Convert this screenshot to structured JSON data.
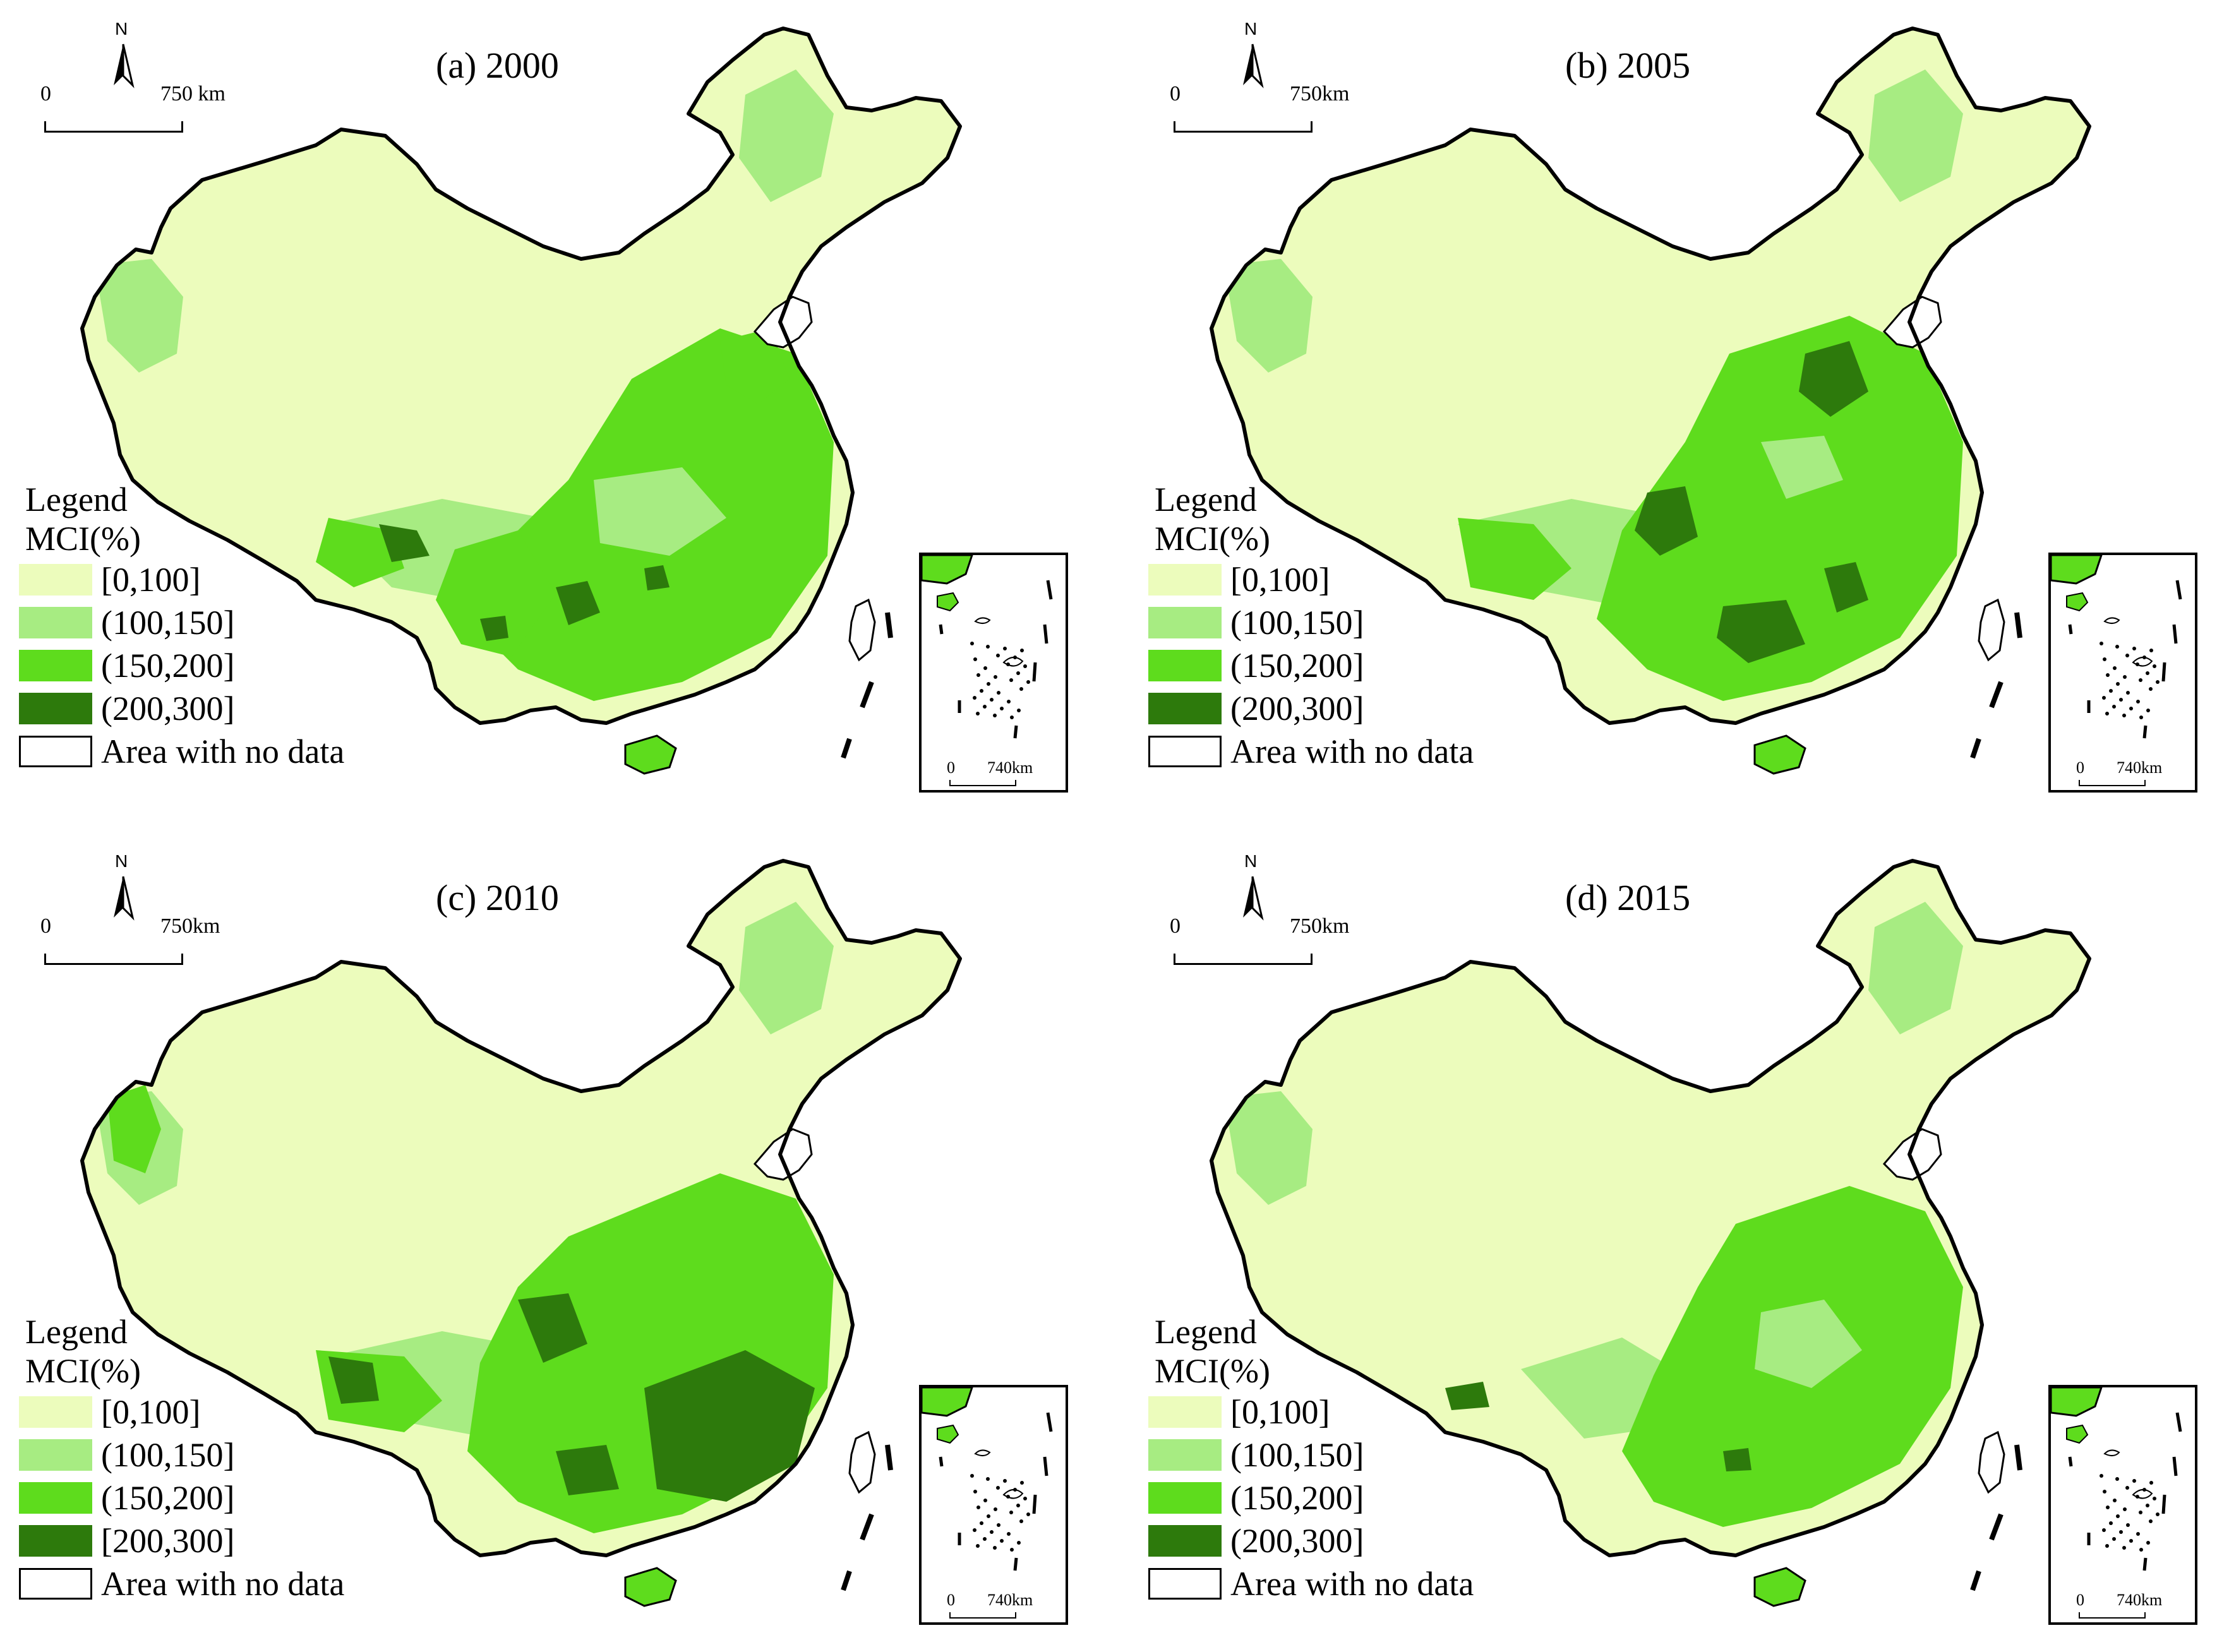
{
  "colors": {
    "class0": "#ecfcbc",
    "class1": "#a7ec82",
    "class2": "#5edc1d",
    "class3": "#2d7a0c",
    "nodata": "#ffffff",
    "border": "#000000"
  },
  "panels": [
    {
      "title": "(a) 2000",
      "north": "N",
      "scale": {
        "start": "0",
        "end": "750 km"
      },
      "inset_scale": {
        "start": "0",
        "end": "740km"
      },
      "legend": {
        "title": "Legend",
        "subtitle": "MCI(%)",
        "items": [
          {
            "label": "[0,100]",
            "color": "#ecfcbc"
          },
          {
            "label": "(100,150]",
            "color": "#a7ec82"
          },
          {
            "label": "(150,200]",
            "color": "#5edc1d"
          },
          {
            "label": "(200,300]",
            "color": "#2d7a0c"
          },
          {
            "label": "Area with no data",
            "color": "#ffffff"
          }
        ]
      },
      "pattern": "2000"
    },
    {
      "title": "(b) 2005",
      "north": "N",
      "scale": {
        "start": "0",
        "end": "750km"
      },
      "inset_scale": {
        "start": "0",
        "end": "740km"
      },
      "legend": {
        "title": "Legend",
        "subtitle": "MCI(%)",
        "items": [
          {
            "label": "[0,100]",
            "color": "#ecfcbc"
          },
          {
            "label": "(100,150]",
            "color": "#a7ec82"
          },
          {
            "label": "(150,200]",
            "color": "#5edc1d"
          },
          {
            "label": "(200,300]",
            "color": "#2d7a0c"
          },
          {
            "label": "Area with no data",
            "color": "#ffffff"
          }
        ]
      },
      "pattern": "2005"
    },
    {
      "title": "(c) 2010",
      "north": "N",
      "scale": {
        "start": "0",
        "end": "750km"
      },
      "inset_scale": {
        "start": "0",
        "end": "740km"
      },
      "legend": {
        "title": "Legend",
        "subtitle": "MCI(%)",
        "items": [
          {
            "label": "[0,100]",
            "color": "#ecfcbc"
          },
          {
            "label": "(100,150]",
            "color": "#a7ec82"
          },
          {
            "label": "(150,200]",
            "color": "#5edc1d"
          },
          {
            "label": "[200,300]",
            "color": "#2d7a0c"
          },
          {
            "label": "Area with no data",
            "color": "#ffffff"
          }
        ]
      },
      "pattern": "2010"
    },
    {
      "title": "(d) 2015",
      "north": "N",
      "scale": {
        "start": "0",
        "end": "750km"
      },
      "inset_scale": {
        "start": "0",
        "end": "740km"
      },
      "legend": {
        "title": "Legend",
        "subtitle": "MCI(%)",
        "items": [
          {
            "label": "[0,100]",
            "color": "#ecfcbc"
          },
          {
            "label": "(100,150]",
            "color": "#a7ec82"
          },
          {
            "label": "(150,200]",
            "color": "#5edc1d"
          },
          {
            "label": "(200,300]",
            "color": "#2d7a0c"
          },
          {
            "label": "Area with no data",
            "color": "#ffffff"
          }
        ]
      },
      "pattern": "2015"
    }
  ]
}
